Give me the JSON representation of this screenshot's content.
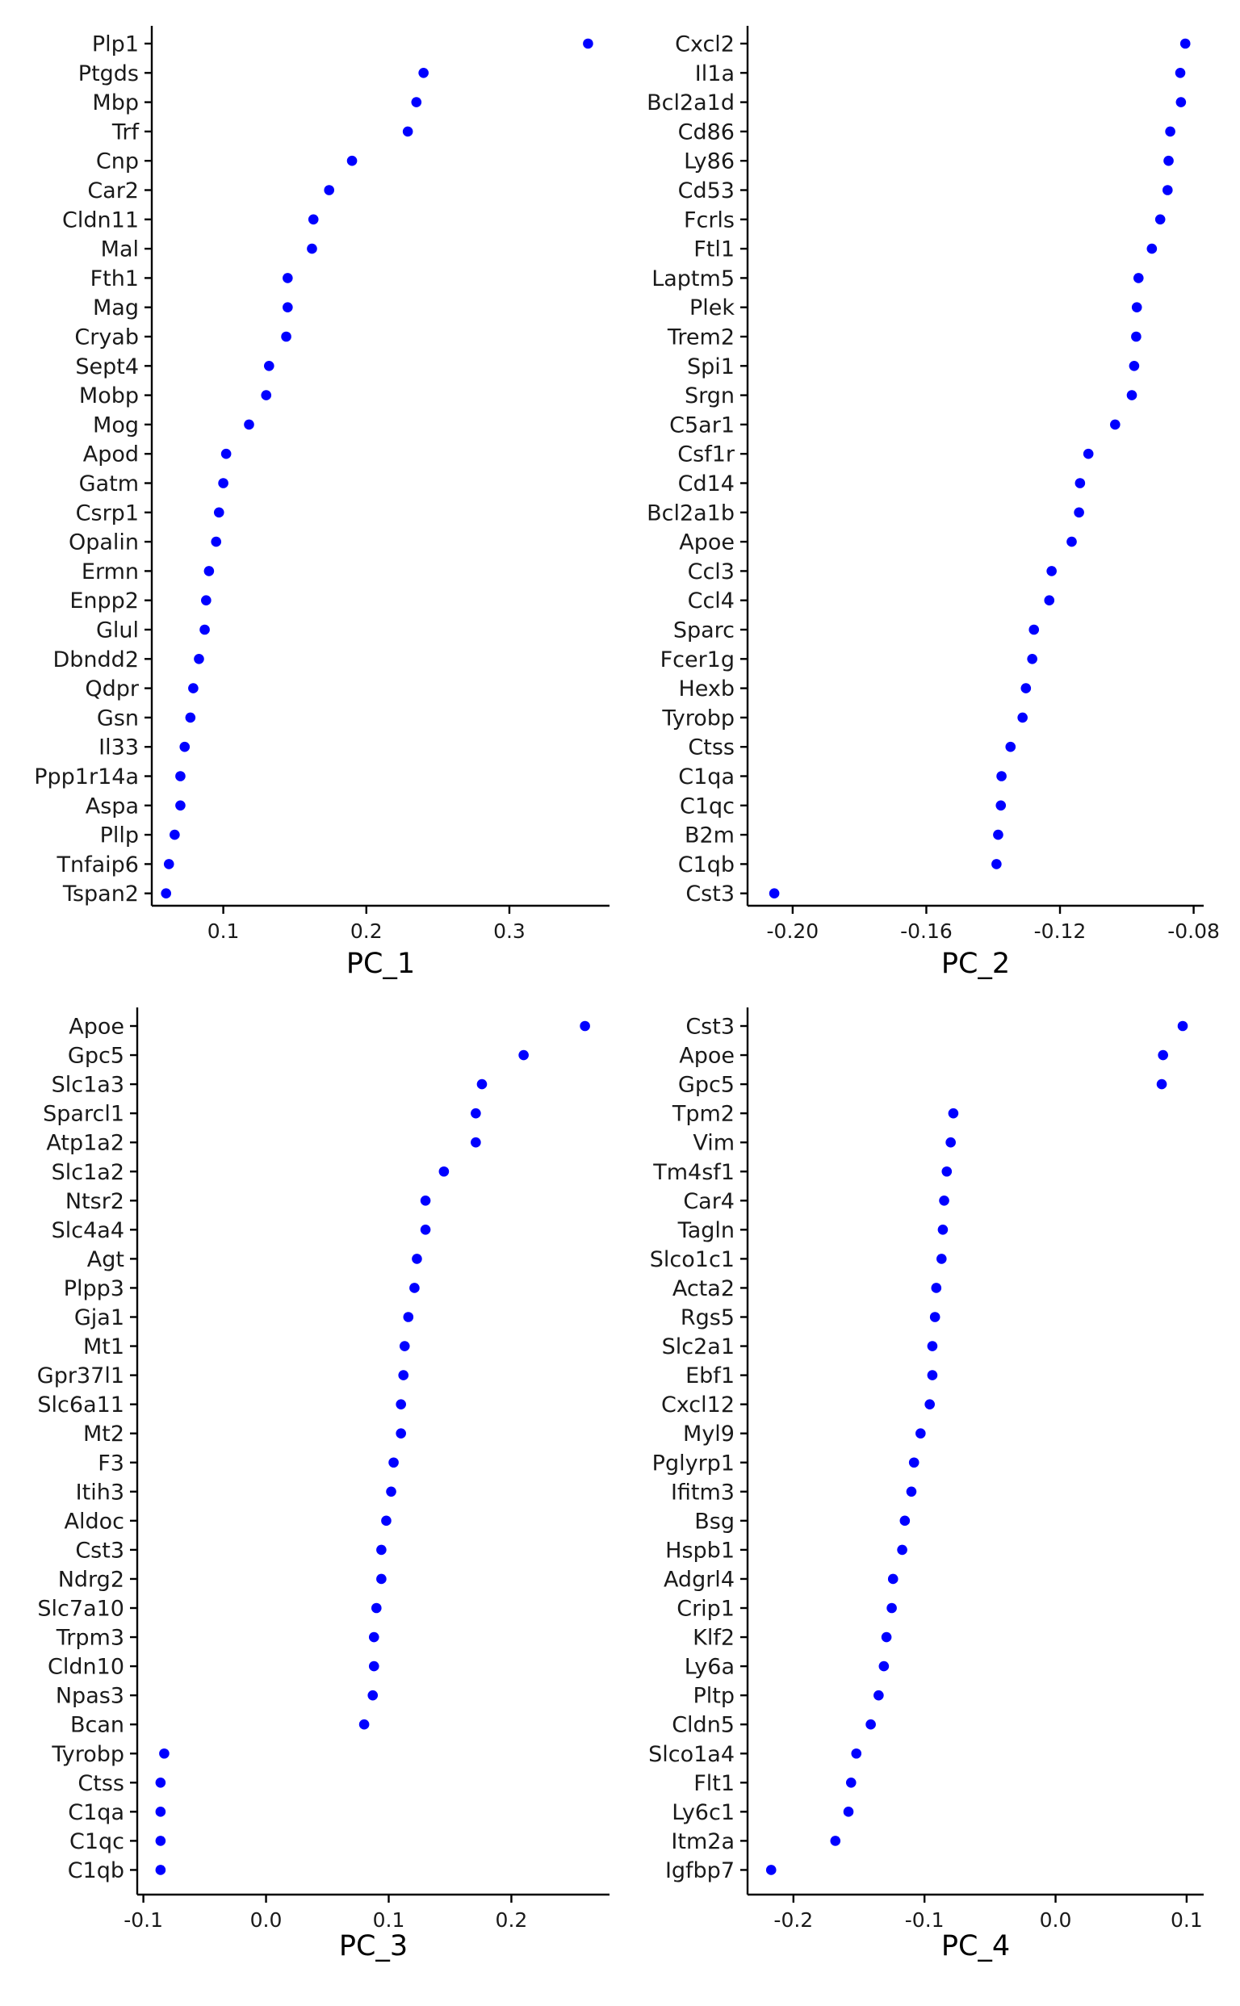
{
  "point_color": "#0000ff",
  "chart_data": [
    {
      "type": "scatter",
      "xlabel": "PC_1",
      "xlim": [
        0.05,
        0.37
      ],
      "xticks": [
        0.1,
        0.2,
        0.3
      ],
      "xtick_labels": [
        "0.1",
        "0.2",
        "0.3"
      ],
      "genes": [
        "Plp1",
        "Ptgds",
        "Mbp",
        "Trf",
        "Cnp",
        "Car2",
        "Cldn11",
        "Mal",
        "Fth1",
        "Mag",
        "Cryab",
        "Sept4",
        "Mobp",
        "Mog",
        "Apod",
        "Gatm",
        "Csrp1",
        "Opalin",
        "Ermn",
        "Enpp2",
        "Glul",
        "Dbndd2",
        "Qdpr",
        "Gsn",
        "Il33",
        "Ppp1r14a",
        "Aspa",
        "Pllp",
        "Tnfaip6",
        "Tspan2"
      ],
      "values": [
        0.355,
        0.24,
        0.235,
        0.229,
        0.19,
        0.174,
        0.163,
        0.162,
        0.145,
        0.145,
        0.144,
        0.132,
        0.13,
        0.118,
        0.102,
        0.1,
        0.097,
        0.095,
        0.09,
        0.088,
        0.087,
        0.083,
        0.079,
        0.077,
        0.073,
        0.07,
        0.07,
        0.066,
        0.062,
        0.06
      ]
    },
    {
      "type": "scatter",
      "xlabel": "PC_2",
      "xlim": [
        -0.2135,
        -0.077
      ],
      "xticks": [
        -0.2,
        -0.16,
        -0.12,
        -0.08
      ],
      "xtick_labels": [
        "-0.20",
        "-0.16",
        "-0.12",
        "-0.08"
      ],
      "genes": [
        "Cxcl2",
        "Il1a",
        "Bcl2a1d",
        "Cd86",
        "Ly86",
        "Cd53",
        "Fcrls",
        "Ftl1",
        "Laptm5",
        "Plek",
        "Trem2",
        "Spi1",
        "Srgn",
        "C5ar1",
        "Csf1r",
        "Cd14",
        "Bcl2a1b",
        "Apoe",
        "Ccl3",
        "Ccl4",
        "Sparc",
        "Fcer1g",
        "Hexb",
        "Tyrobp",
        "Ctss",
        "C1qa",
        "C1qc",
        "B2m",
        "C1qb",
        "Cst3"
      ],
      "values": [
        -0.0825,
        -0.084,
        -0.0838,
        -0.087,
        -0.0875,
        -0.0878,
        -0.09,
        -0.0925,
        -0.0965,
        -0.097,
        -0.0972,
        -0.0978,
        -0.0985,
        -0.1035,
        -0.1115,
        -0.114,
        -0.1143,
        -0.1165,
        -0.1225,
        -0.1232,
        -0.1278,
        -0.1283,
        -0.1302,
        -0.1312,
        -0.1348,
        -0.1375,
        -0.1377,
        -0.1385,
        -0.139,
        -0.2055
      ]
    },
    {
      "type": "scatter",
      "xlabel": "PC_3",
      "xlim": [
        -0.105,
        0.28
      ],
      "xticks": [
        -0.1,
        0.0,
        0.1,
        0.2
      ],
      "xtick_labels": [
        "-0.1",
        "0.0",
        "0.1",
        "0.2"
      ],
      "genes": [
        "Apoe",
        "Gpc5",
        "Slc1a3",
        "Sparcl1",
        "Atp1a2",
        "Slc1a2",
        "Ntsr2",
        "Slc4a4",
        "Agt",
        "Plpp3",
        "Gja1",
        "Mt1",
        "Gpr37l1",
        "Slc6a11",
        "Mt2",
        "F3",
        "Itih3",
        "Aldoc",
        "Cst3",
        "Ndrg2",
        "Slc7a10",
        "Trpm3",
        "Cldn10",
        "Npas3",
        "Bcan",
        "Tyrobp",
        "Ctss",
        "C1qa",
        "C1qc",
        "C1qb"
      ],
      "values": [
        0.26,
        0.21,
        0.176,
        0.171,
        0.171,
        0.145,
        0.13,
        0.13,
        0.123,
        0.121,
        0.116,
        0.113,
        0.112,
        0.11,
        0.11,
        0.104,
        0.102,
        0.098,
        0.094,
        0.094,
        0.09,
        0.088,
        0.088,
        0.087,
        0.08,
        -0.083,
        -0.086,
        -0.086,
        -0.086,
        -0.086
      ]
    },
    {
      "type": "scatter",
      "xlabel": "PC_4",
      "xlim": [
        -0.235,
        0.113
      ],
      "xticks": [
        -0.2,
        -0.1,
        0.0,
        0.1
      ],
      "xtick_labels": [
        "-0.2",
        "-0.1",
        "0.0",
        "0.1"
      ],
      "genes": [
        "Cst3",
        "Apoe",
        "Gpc5",
        "Tpm2",
        "Vim",
        "Tm4sf1",
        "Car4",
        "Tagln",
        "Slco1c1",
        "Acta2",
        "Rgs5",
        "Slc2a1",
        "Ebf1",
        "Cxcl12",
        "Myl9",
        "Pglyrp1",
        "Ifitm3",
        "Bsg",
        "Hspb1",
        "Adgrl4",
        "Crip1",
        "Klf2",
        "Ly6a",
        "Pltp",
        "Cldn5",
        "Slco1a4",
        "Flt1",
        "Ly6c1",
        "Itm2a",
        "Igfbp7"
      ],
      "values": [
        0.097,
        0.082,
        0.081,
        -0.078,
        -0.08,
        -0.083,
        -0.085,
        -0.086,
        -0.087,
        -0.091,
        -0.092,
        -0.094,
        -0.094,
        -0.096,
        -0.103,
        -0.108,
        -0.11,
        -0.115,
        -0.117,
        -0.124,
        -0.125,
        -0.129,
        -0.131,
        -0.135,
        -0.141,
        -0.152,
        -0.156,
        -0.158,
        -0.168,
        -0.217
      ]
    }
  ]
}
